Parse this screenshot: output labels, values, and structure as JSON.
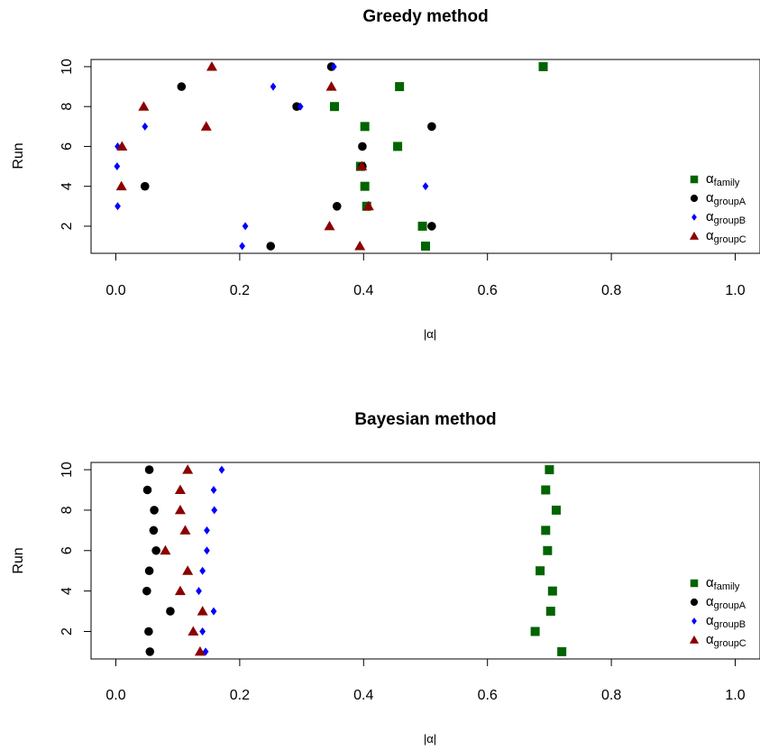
{
  "chart_data": [
    {
      "type": "scatter",
      "title": "Greedy method",
      "xlabel": "|α|",
      "ylabel": "Run",
      "xlim": [
        -0.04,
        1.04
      ],
      "ylim": [
        0.64,
        10.36
      ],
      "xticks": [
        0.0,
        0.2,
        0.4,
        0.6,
        0.8,
        1.0
      ],
      "xtick_labels": [
        "0.0",
        "0.2",
        "0.4",
        "0.6",
        "0.8",
        "1.0"
      ],
      "yticks": [
        2,
        4,
        6,
        8,
        10
      ],
      "ytick_labels": [
        "2",
        "4",
        "6",
        "8",
        "10"
      ],
      "grid": false,
      "legend_position": "right",
      "series": [
        {
          "name": "α",
          "subscript": "family",
          "marker": "square",
          "color": "#006400",
          "points": [
            [
              0.5,
              1
            ],
            [
              0.495,
              2
            ],
            [
              0.405,
              3
            ],
            [
              0.402,
              4
            ],
            [
              0.395,
              5
            ],
            [
              0.455,
              6
            ],
            [
              0.402,
              7
            ],
            [
              0.353,
              8
            ],
            [
              0.458,
              9
            ],
            [
              0.69,
              10
            ]
          ]
        },
        {
          "name": "α",
          "subscript": "groupA",
          "marker": "circle",
          "color": "#000000",
          "points": [
            [
              0.25,
              1
            ],
            [
              0.51,
              2
            ],
            [
              0.357,
              3
            ],
            [
              0.047,
              4
            ],
            [
              0.398,
              5
            ],
            [
              0.398,
              6
            ],
            [
              0.51,
              7
            ],
            [
              0.292,
              8
            ],
            [
              0.106,
              9
            ],
            [
              0.348,
              10
            ]
          ]
        },
        {
          "name": "α",
          "subscript": "groupB",
          "marker": "diamond",
          "color": "#0000ff",
          "points": [
            [
              0.204,
              1
            ],
            [
              0.209,
              2
            ],
            [
              0.003,
              3
            ],
            [
              0.5,
              4
            ],
            [
              0.002,
              5
            ],
            [
              0.003,
              6
            ],
            [
              0.047,
              7
            ],
            [
              0.298,
              8
            ],
            [
              0.254,
              9
            ],
            [
              0.352,
              10
            ]
          ]
        },
        {
          "name": "α",
          "subscript": "groupC",
          "marker": "triangle",
          "color": "#8b0000",
          "points": [
            [
              0.394,
              1
            ],
            [
              0.345,
              2
            ],
            [
              0.408,
              3
            ],
            [
              0.009,
              4
            ],
            [
              0.397,
              5
            ],
            [
              0.01,
              6
            ],
            [
              0.146,
              7
            ],
            [
              0.045,
              8
            ],
            [
              0.348,
              9
            ],
            [
              0.155,
              10
            ]
          ]
        }
      ]
    },
    {
      "type": "scatter",
      "title": "Bayesian method",
      "xlabel": "|α|",
      "ylabel": "Run",
      "xlim": [
        -0.04,
        1.04
      ],
      "ylim": [
        0.64,
        10.36
      ],
      "xticks": [
        0.0,
        0.2,
        0.4,
        0.6,
        0.8,
        1.0
      ],
      "xtick_labels": [
        "0.0",
        "0.2",
        "0.4",
        "0.6",
        "0.8",
        "1.0"
      ],
      "yticks": [
        2,
        4,
        6,
        8,
        10
      ],
      "ytick_labels": [
        "2",
        "4",
        "6",
        "8",
        "10"
      ],
      "grid": false,
      "legend_position": "right",
      "series": [
        {
          "name": "α",
          "subscript": "family",
          "marker": "square",
          "color": "#006400",
          "points": [
            [
              0.72,
              1
            ],
            [
              0.677,
              2
            ],
            [
              0.702,
              3
            ],
            [
              0.705,
              4
            ],
            [
              0.685,
              5
            ],
            [
              0.697,
              6
            ],
            [
              0.694,
              7
            ],
            [
              0.711,
              8
            ],
            [
              0.694,
              9
            ],
            [
              0.7,
              10
            ]
          ]
        },
        {
          "name": "α",
          "subscript": "groupA",
          "marker": "circle",
          "color": "#000000",
          "points": [
            [
              0.055,
              1
            ],
            [
              0.053,
              2
            ],
            [
              0.088,
              3
            ],
            [
              0.05,
              4
            ],
            [
              0.054,
              5
            ],
            [
              0.065,
              6
            ],
            [
              0.061,
              7
            ],
            [
              0.062,
              8
            ],
            [
              0.051,
              9
            ],
            [
              0.054,
              10
            ]
          ]
        },
        {
          "name": "α",
          "subscript": "groupB",
          "marker": "diamond",
          "color": "#0000ff",
          "points": [
            [
              0.145,
              1
            ],
            [
              0.14,
              2
            ],
            [
              0.158,
              3
            ],
            [
              0.134,
              4
            ],
            [
              0.14,
              5
            ],
            [
              0.147,
              6
            ],
            [
              0.147,
              7
            ],
            [
              0.159,
              8
            ],
            [
              0.158,
              9
            ],
            [
              0.171,
              10
            ]
          ]
        },
        {
          "name": "α",
          "subscript": "groupC",
          "marker": "triangle",
          "color": "#8b0000",
          "points": [
            [
              0.136,
              1
            ],
            [
              0.125,
              2
            ],
            [
              0.14,
              3
            ],
            [
              0.104,
              4
            ],
            [
              0.116,
              5
            ],
            [
              0.08,
              6
            ],
            [
              0.112,
              7
            ],
            [
              0.104,
              8
            ],
            [
              0.104,
              9
            ],
            [
              0.116,
              10
            ]
          ]
        }
      ]
    }
  ]
}
